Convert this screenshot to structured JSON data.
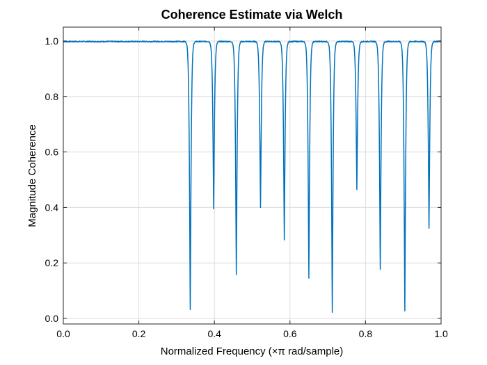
{
  "chart_data": {
    "type": "line",
    "title": "Coherence Estimate via Welch",
    "xlabel": "Normalized Frequency (×π rad/sample)",
    "ylabel": "Magnitude Coherence",
    "xlim": [
      0,
      1
    ],
    "ylim": [
      -0.02,
      1.05
    ],
    "xticks": [
      0,
      0.2,
      0.4,
      0.6,
      0.8,
      1
    ],
    "xtick_labels": [
      "0.0",
      "0.2",
      "0.4",
      "0.6",
      "0.8",
      "1.0"
    ],
    "yticks": [
      0,
      0.2,
      0.4,
      0.6,
      0.8,
      1
    ],
    "ytick_labels": [
      "0.0",
      "0.2",
      "0.4",
      "0.6",
      "0.8",
      "1.0"
    ],
    "grid": true,
    "series_color": "#0072bd",
    "baseline": 0.998,
    "plateau_end": 0.31,
    "dips": [
      {
        "x": 0.336,
        "min": 0.032
      },
      {
        "x": 0.398,
        "min": 0.395
      },
      {
        "x": 0.458,
        "min": 0.158
      },
      {
        "x": 0.522,
        "min": 0.4
      },
      {
        "x": 0.585,
        "min": 0.283
      },
      {
        "x": 0.65,
        "min": 0.145
      },
      {
        "x": 0.712,
        "min": 0.022
      },
      {
        "x": 0.777,
        "min": 0.465
      },
      {
        "x": 0.839,
        "min": 0.177
      },
      {
        "x": 0.904,
        "min": 0.027
      },
      {
        "x": 0.968,
        "min": 0.325
      }
    ]
  }
}
